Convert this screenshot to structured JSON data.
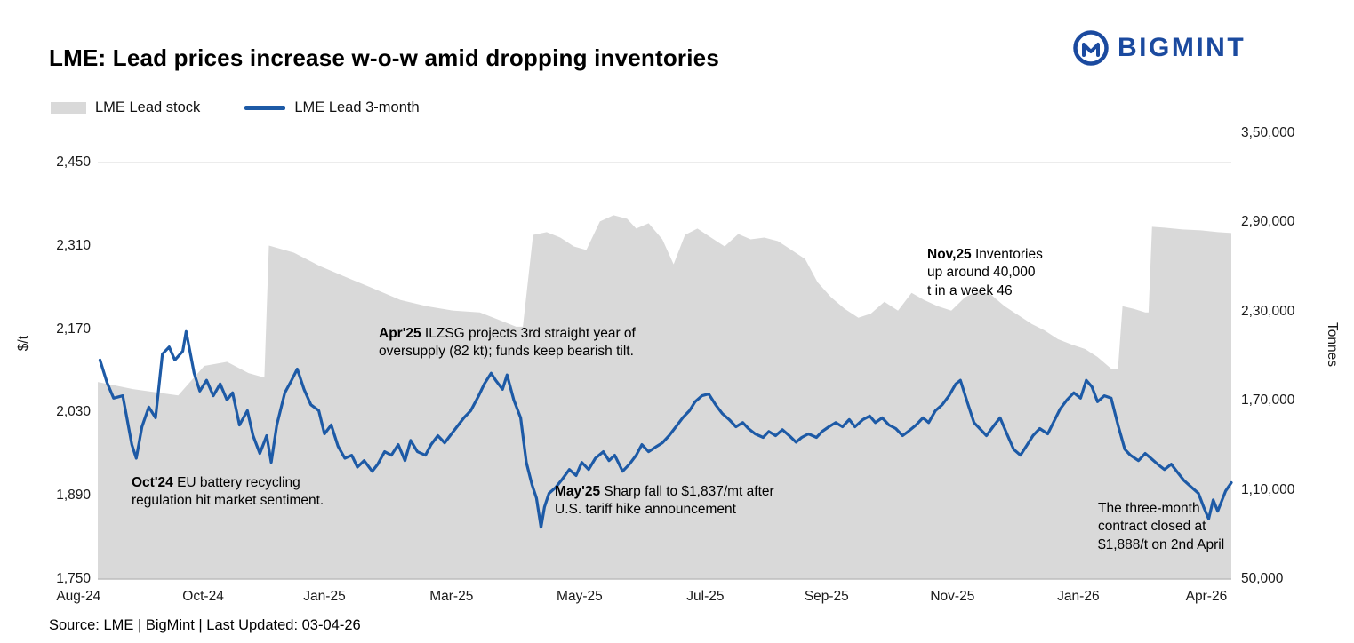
{
  "header": {
    "title": "LME: Lead prices increase w-o-w amid dropping inventories",
    "logo_text": "BIGMINT"
  },
  "legend": [
    {
      "label": "LME Lead stock",
      "color": "#d9d9d9",
      "type": "area"
    },
    {
      "label": "LME Lead 3-month",
      "color": "#1d5aa6",
      "type": "line"
    }
  ],
  "annotations": [
    {
      "title": "Oct'24",
      "text": " EU battery recycling regulation hit market sentiment."
    },
    {
      "title": "Apr'25",
      "text": " ILZSG projects 3rd straight year of oversupply (82 kt); funds keep bearish tilt."
    },
    {
      "title": "May'25",
      "text": " Sharp fall to $1,837/mt after U.S. tariff hike announcement"
    },
    {
      "title": "Nov,25",
      "text": " Inventories up around 40,000 t in a week 46"
    },
    {
      "title": "",
      "text": "The three-month contract closed at $1,888/t on 2nd April"
    }
  ],
  "footer": {
    "source": "Source: LME | BigMint | Last Updated: 03-04-26"
  },
  "chart_data": {
    "type": "combo",
    "title": "LME: Lead prices increase w-o-w amid dropping inventories",
    "colors": {
      "area": "#d9d9d9",
      "line": "#1d5aa6",
      "grid": "#d9d9d9",
      "axis_line": "#bdbdbd",
      "logo_blue": "#1b4a9f"
    },
    "left_axis": {
      "label": "$/t",
      "min": 1750,
      "max": 2450,
      "ticks": [
        {
          "v": 2450,
          "label": "2,450"
        },
        {
          "v": 2310,
          "label": "2,310"
        },
        {
          "v": 2170,
          "label": "2,170"
        },
        {
          "v": 2030,
          "label": "2,030"
        },
        {
          "v": 1890,
          "label": "1,890"
        },
        {
          "v": 1750,
          "label": "1,750"
        }
      ]
    },
    "right_axis": {
      "label": "Tonnes",
      "min": 50000,
      "max": 350000,
      "ticks": [
        {
          "v": 350000,
          "label": "3,50,000"
        },
        {
          "v": 290000,
          "label": "2,90,000"
        },
        {
          "v": 230000,
          "label": "2,30,000"
        },
        {
          "v": 170000,
          "label": "1,70,000"
        },
        {
          "v": 110000,
          "label": "1,10,000"
        },
        {
          "v": 50000,
          "label": "50,000"
        }
      ]
    },
    "x_axis": {
      "ticks": [
        {
          "f": -0.017,
          "label": "Aug-24"
        },
        {
          "f": 0.093,
          "label": "Oct-24"
        },
        {
          "f": 0.2,
          "label": "Jan-25"
        },
        {
          "f": 0.312,
          "label": "Mar-25"
        },
        {
          "f": 0.425,
          "label": "May-25"
        },
        {
          "f": 0.536,
          "label": "Jul-25"
        },
        {
          "f": 0.643,
          "label": "Sep-25"
        },
        {
          "f": 0.754,
          "label": "Nov-25"
        },
        {
          "f": 0.865,
          "label": "Jan-26"
        },
        {
          "f": 0.978,
          "label": "Apr-26"
        }
      ]
    },
    "series": [
      {
        "name": "LME Lead stock",
        "type": "area",
        "axis": "right",
        "color": "#d9d9d9",
        "points": [
          [
            0.0,
            182600
          ],
          [
            0.031,
            177800
          ],
          [
            0.071,
            173600
          ],
          [
            0.094,
            193400
          ],
          [
            0.114,
            196200
          ],
          [
            0.133,
            188600
          ],
          [
            0.147,
            185600
          ],
          [
            0.151,
            274400
          ],
          [
            0.173,
            269600
          ],
          [
            0.196,
            260600
          ],
          [
            0.22,
            252800
          ],
          [
            0.243,
            245600
          ],
          [
            0.267,
            237800
          ],
          [
            0.29,
            233600
          ],
          [
            0.314,
            230600
          ],
          [
            0.337,
            229400
          ],
          [
            0.353,
            224600
          ],
          [
            0.369,
            219800
          ],
          [
            0.375,
            219800
          ],
          [
            0.384,
            281600
          ],
          [
            0.396,
            283400
          ],
          [
            0.408,
            279800
          ],
          [
            0.42,
            273800
          ],
          [
            0.431,
            271400
          ],
          [
            0.443,
            290600
          ],
          [
            0.455,
            294800
          ],
          [
            0.467,
            292400
          ],
          [
            0.475,
            285800
          ],
          [
            0.486,
            289400
          ],
          [
            0.498,
            278600
          ],
          [
            0.508,
            261800
          ],
          [
            0.518,
            281600
          ],
          [
            0.529,
            285800
          ],
          [
            0.541,
            279800
          ],
          [
            0.553,
            273800
          ],
          [
            0.565,
            282200
          ],
          [
            0.576,
            278600
          ],
          [
            0.588,
            279800
          ],
          [
            0.6,
            277400
          ],
          [
            0.612,
            271400
          ],
          [
            0.624,
            265400
          ],
          [
            0.635,
            249800
          ],
          [
            0.647,
            239600
          ],
          [
            0.659,
            231800
          ],
          [
            0.671,
            225800
          ],
          [
            0.682,
            228600
          ],
          [
            0.694,
            236600
          ],
          [
            0.706,
            230600
          ],
          [
            0.718,
            242600
          ],
          [
            0.729,
            237800
          ],
          [
            0.741,
            233600
          ],
          [
            0.753,
            230600
          ],
          [
            0.765,
            239600
          ],
          [
            0.776,
            243800
          ],
          [
            0.788,
            241400
          ],
          [
            0.8,
            233600
          ],
          [
            0.812,
            227600
          ],
          [
            0.824,
            221600
          ],
          [
            0.835,
            217400
          ],
          [
            0.847,
            211400
          ],
          [
            0.859,
            207800
          ],
          [
            0.871,
            204800
          ],
          [
            0.882,
            199400
          ],
          [
            0.894,
            191600
          ],
          [
            0.9,
            191600
          ],
          [
            0.904,
            233600
          ],
          [
            0.914,
            231800
          ],
          [
            0.924,
            229400
          ],
          [
            0.927,
            229400
          ],
          [
            0.93,
            287000
          ],
          [
            0.941,
            286400
          ],
          [
            0.957,
            285200
          ],
          [
            0.973,
            284600
          ],
          [
            0.988,
            283400
          ],
          [
            1.0,
            282800
          ]
        ]
      },
      {
        "name": "LME Lead 3-month",
        "type": "line",
        "axis": "left",
        "color": "#1d5aa6",
        "points": [
          [
            0.002,
            2118
          ],
          [
            0.008,
            2081
          ],
          [
            0.014,
            2054
          ],
          [
            0.022,
            2058
          ],
          [
            0.03,
            1976
          ],
          [
            0.034,
            1953
          ],
          [
            0.039,
            2006
          ],
          [
            0.045,
            2039
          ],
          [
            0.051,
            2021
          ],
          [
            0.057,
            2128
          ],
          [
            0.063,
            2140
          ],
          [
            0.068,
            2118
          ],
          [
            0.075,
            2133
          ],
          [
            0.078,
            2166
          ],
          [
            0.085,
            2096
          ],
          [
            0.09,
            2066
          ],
          [
            0.096,
            2084
          ],
          [
            0.102,
            2058
          ],
          [
            0.108,
            2078
          ],
          [
            0.114,
            2051
          ],
          [
            0.119,
            2063
          ],
          [
            0.125,
            2009
          ],
          [
            0.132,
            2033
          ],
          [
            0.137,
            1991
          ],
          [
            0.143,
            1961
          ],
          [
            0.149,
            1991
          ],
          [
            0.153,
            1946
          ],
          [
            0.158,
            2009
          ],
          [
            0.165,
            2063
          ],
          [
            0.171,
            2084
          ],
          [
            0.176,
            2103
          ],
          [
            0.182,
            2069
          ],
          [
            0.188,
            2043
          ],
          [
            0.195,
            2033
          ],
          [
            0.2,
            1994
          ],
          [
            0.206,
            2009
          ],
          [
            0.212,
            1973
          ],
          [
            0.218,
            1953
          ],
          [
            0.224,
            1958
          ],
          [
            0.229,
            1938
          ],
          [
            0.235,
            1949
          ],
          [
            0.242,
            1931
          ],
          [
            0.247,
            1943
          ],
          [
            0.253,
            1964
          ],
          [
            0.259,
            1958
          ],
          [
            0.265,
            1976
          ],
          [
            0.271,
            1949
          ],
          [
            0.276,
            1983
          ],
          [
            0.282,
            1964
          ],
          [
            0.289,
            1958
          ],
          [
            0.294,
            1976
          ],
          [
            0.3,
            1991
          ],
          [
            0.306,
            1979
          ],
          [
            0.312,
            1994
          ],
          [
            0.318,
            2009
          ],
          [
            0.323,
            2021
          ],
          [
            0.329,
            2033
          ],
          [
            0.336,
            2058
          ],
          [
            0.341,
            2078
          ],
          [
            0.347,
            2096
          ],
          [
            0.351,
            2084
          ],
          [
            0.357,
            2069
          ],
          [
            0.361,
            2093
          ],
          [
            0.367,
            2051
          ],
          [
            0.373,
            2021
          ],
          [
            0.378,
            1946
          ],
          [
            0.383,
            1909
          ],
          [
            0.387,
            1886
          ],
          [
            0.391,
            1837
          ],
          [
            0.394,
            1871
          ],
          [
            0.398,
            1894
          ],
          [
            0.404,
            1904
          ],
          [
            0.409,
            1916
          ],
          [
            0.416,
            1934
          ],
          [
            0.422,
            1924
          ],
          [
            0.427,
            1946
          ],
          [
            0.433,
            1934
          ],
          [
            0.439,
            1953
          ],
          [
            0.446,
            1964
          ],
          [
            0.451,
            1949
          ],
          [
            0.456,
            1958
          ],
          [
            0.463,
            1931
          ],
          [
            0.469,
            1943
          ],
          [
            0.475,
            1958
          ],
          [
            0.48,
            1976
          ],
          [
            0.486,
            1964
          ],
          [
            0.493,
            1973
          ],
          [
            0.498,
            1979
          ],
          [
            0.504,
            1991
          ],
          [
            0.51,
            2006
          ],
          [
            0.516,
            2021
          ],
          [
            0.522,
            2033
          ],
          [
            0.527,
            2048
          ],
          [
            0.533,
            2058
          ],
          [
            0.539,
            2061
          ],
          [
            0.545,
            2043
          ],
          [
            0.551,
            2028
          ],
          [
            0.557,
            2018
          ],
          [
            0.563,
            2006
          ],
          [
            0.569,
            2013
          ],
          [
            0.574,
            2003
          ],
          [
            0.58,
            1994
          ],
          [
            0.587,
            1988
          ],
          [
            0.592,
            1998
          ],
          [
            0.598,
            1991
          ],
          [
            0.604,
            2001
          ],
          [
            0.61,
            1991
          ],
          [
            0.616,
            1980
          ],
          [
            0.621,
            1988
          ],
          [
            0.627,
            1994
          ],
          [
            0.634,
            1988
          ],
          [
            0.639,
            1998
          ],
          [
            0.645,
            2006
          ],
          [
            0.651,
            2013
          ],
          [
            0.657,
            2006
          ],
          [
            0.663,
            2018
          ],
          [
            0.668,
            2006
          ],
          [
            0.675,
            2018
          ],
          [
            0.681,
            2024
          ],
          [
            0.686,
            2013
          ],
          [
            0.692,
            2021
          ],
          [
            0.698,
            2009
          ],
          [
            0.704,
            2003
          ],
          [
            0.71,
            1991
          ],
          [
            0.715,
            1998
          ],
          [
            0.722,
            2009
          ],
          [
            0.728,
            2021
          ],
          [
            0.733,
            2013
          ],
          [
            0.739,
            2033
          ],
          [
            0.745,
            2043
          ],
          [
            0.751,
            2058
          ],
          [
            0.757,
            2078
          ],
          [
            0.761,
            2084
          ],
          [
            0.767,
            2048
          ],
          [
            0.773,
            2013
          ],
          [
            0.778,
            2003
          ],
          [
            0.784,
            1991
          ],
          [
            0.791,
            2009
          ],
          [
            0.796,
            2021
          ],
          [
            0.802,
            1994
          ],
          [
            0.808,
            1968
          ],
          [
            0.814,
            1958
          ],
          [
            0.82,
            1976
          ],
          [
            0.825,
            1991
          ],
          [
            0.831,
            2003
          ],
          [
            0.838,
            1994
          ],
          [
            0.843,
            2013
          ],
          [
            0.849,
            2036
          ],
          [
            0.855,
            2051
          ],
          [
            0.861,
            2063
          ],
          [
            0.867,
            2054
          ],
          [
            0.872,
            2084
          ],
          [
            0.877,
            2073
          ],
          [
            0.882,
            2048
          ],
          [
            0.888,
            2058
          ],
          [
            0.894,
            2054
          ],
          [
            0.9,
            2009
          ],
          [
            0.906,
            1968
          ],
          [
            0.911,
            1958
          ],
          [
            0.918,
            1949
          ],
          [
            0.924,
            1961
          ],
          [
            0.929,
            1953
          ],
          [
            0.935,
            1943
          ],
          [
            0.941,
            1934
          ],
          [
            0.947,
            1943
          ],
          [
            0.953,
            1928
          ],
          [
            0.958,
            1916
          ],
          [
            0.965,
            1904
          ],
          [
            0.971,
            1894
          ],
          [
            0.976,
            1869
          ],
          [
            0.98,
            1851
          ],
          [
            0.984,
            1883
          ],
          [
            0.988,
            1864
          ],
          [
            0.995,
            1898
          ],
          [
            1.0,
            1912
          ]
        ]
      }
    ]
  }
}
